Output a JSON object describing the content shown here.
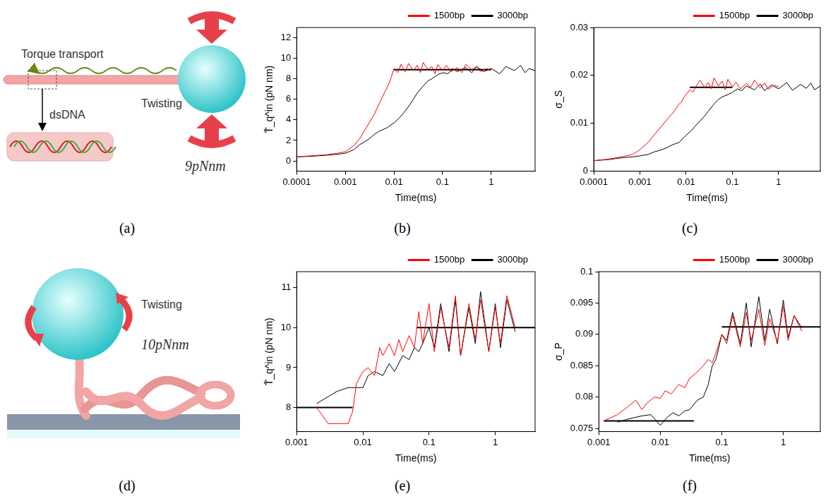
{
  "chart_data": [
    {
      "type": "line",
      "panel_label": "(b)",
      "x_label": "Time(ms)",
      "y_label": "T̄_q^in (pN nm)",
      "log": "x",
      "grid": false,
      "legend": "top-right",
      "xlim": [
        0.0001,
        8
      ],
      "xticks": [
        0.0001,
        0.001,
        0.01,
        0.1,
        1
      ],
      "ylim": [
        -1,
        13
      ],
      "yticks": [
        0,
        2,
        4,
        6,
        8,
        10,
        12
      ],
      "series": [
        {
          "name": "1500bp",
          "color": "#ff0000",
          "x": [
            0.0001,
            0.0002,
            0.0004,
            0.0007,
            0.001,
            0.0015,
            0.002,
            0.003,
            0.004,
            0.005,
            0.006,
            0.007,
            0.008,
            0.009,
            0.01,
            0.012,
            0.014,
            0.017,
            0.02,
            0.025,
            0.03,
            0.035,
            0.04,
            0.05,
            0.06,
            0.07,
            0.08,
            0.1,
            0.12,
            0.15,
            0.2,
            0.25,
            0.3,
            0.4,
            0.5,
            0.6,
            0.8,
            1
          ],
          "values": [
            0.4,
            0.5,
            0.6,
            0.75,
            0.9,
            1.5,
            2.2,
            3.6,
            4.6,
            5.6,
            6.4,
            7.0,
            7.6,
            8.3,
            9.0,
            8.6,
            9.4,
            8.7,
            9.5,
            8.8,
            9.3,
            8.6,
            9.6,
            8.9,
            9.2,
            8.5,
            9.4,
            8.8,
            9.3,
            8.7,
            9.1,
            8.6,
            9.4,
            8.9,
            9.2,
            8.7,
            9.0,
            8.8
          ]
        },
        {
          "name": "3000bp",
          "color": "#000000",
          "x": [
            0.0001,
            0.0002,
            0.0004,
            0.0007,
            0.001,
            0.0015,
            0.002,
            0.003,
            0.004,
            0.005,
            0.007,
            0.01,
            0.013,
            0.016,
            0.02,
            0.025,
            0.03,
            0.04,
            0.05,
            0.06,
            0.08,
            0.1,
            0.13,
            0.16,
            0.2,
            0.3,
            0.4,
            0.5,
            0.7,
            1,
            1.5,
            2,
            3,
            4,
            5,
            6,
            8
          ],
          "values": [
            0.4,
            0.45,
            0.55,
            0.65,
            0.75,
            1.1,
            1.6,
            2.1,
            2.6,
            2.9,
            3.2,
            3.7,
            4.2,
            4.7,
            5.3,
            6.0,
            6.6,
            7.3,
            7.8,
            8.0,
            8.4,
            8.6,
            8.5,
            9.0,
            8.7,
            9.1,
            8.6,
            9.2,
            8.7,
            9.0,
            8.5,
            9.2,
            8.8,
            9.3,
            8.6,
            9.0,
            8.8
          ]
        }
      ],
      "reference_lines": [
        {
          "y": 8.9,
          "x": [
            0.01,
            1
          ],
          "color": "#000000"
        }
      ]
    },
    {
      "type": "line",
      "panel_label": "(c)",
      "x_label": "Time(ms)",
      "y_label": "σ_S",
      "log": "x",
      "grid": false,
      "legend": "top-right",
      "xlim": [
        0.0001,
        8
      ],
      "xticks": [
        0.0001,
        0.001,
        0.01,
        0.1,
        1
      ],
      "ylim": [
        0,
        0.03
      ],
      "yticks": [
        0,
        0.01,
        0.02,
        0.03
      ],
      "series": [
        {
          "name": "1500bp",
          "color": "#ff0000",
          "x": [
            0.0001,
            0.0002,
            0.0004,
            0.0007,
            0.001,
            0.0015,
            0.002,
            0.003,
            0.004,
            0.005,
            0.006,
            0.007,
            0.008,
            0.009,
            0.01,
            0.012,
            0.014,
            0.017,
            0.02,
            0.025,
            0.03,
            0.035,
            0.04,
            0.05,
            0.06,
            0.07,
            0.08,
            0.1,
            0.12,
            0.15,
            0.2,
            0.25,
            0.3,
            0.4,
            0.5,
            0.6,
            0.8,
            1
          ],
          "values": [
            0.0022,
            0.0025,
            0.003,
            0.0035,
            0.0045,
            0.006,
            0.0075,
            0.0095,
            0.011,
            0.012,
            0.013,
            0.014,
            0.0145,
            0.0155,
            0.016,
            0.017,
            0.0165,
            0.018,
            0.019,
            0.0175,
            0.0185,
            0.0172,
            0.0195,
            0.0178,
            0.0188,
            0.017,
            0.0192,
            0.0176,
            0.0186,
            0.0172,
            0.0183,
            0.0175,
            0.019,
            0.0174,
            0.0184,
            0.0171,
            0.018,
            0.0176
          ]
        },
        {
          "name": "3000bp",
          "color": "#000000",
          "x": [
            0.0001,
            0.0002,
            0.0004,
            0.0007,
            0.001,
            0.0015,
            0.002,
            0.003,
            0.004,
            0.005,
            0.007,
            0.01,
            0.013,
            0.016,
            0.02,
            0.025,
            0.03,
            0.04,
            0.05,
            0.06,
            0.08,
            0.1,
            0.13,
            0.16,
            0.2,
            0.3,
            0.4,
            0.5,
            0.7,
            1,
            1.5,
            2,
            3,
            4,
            5,
            6,
            8
          ],
          "values": [
            0.0022,
            0.0024,
            0.0028,
            0.003,
            0.0032,
            0.0035,
            0.004,
            0.0045,
            0.005,
            0.0055,
            0.006,
            0.0075,
            0.0085,
            0.0095,
            0.0105,
            0.0115,
            0.0125,
            0.014,
            0.015,
            0.0155,
            0.016,
            0.0165,
            0.0172,
            0.0168,
            0.0178,
            0.017,
            0.0182,
            0.0168,
            0.018,
            0.0172,
            0.0185,
            0.0169,
            0.0181,
            0.0173,
            0.0184,
            0.017,
            0.0178
          ]
        }
      ],
      "reference_lines": [
        {
          "y": 0.0175,
          "x": [
            0.012,
            0.1
          ],
          "color": "#000000"
        }
      ]
    },
    {
      "type": "line",
      "panel_label": "(e)",
      "x_label": "Time(ms)",
      "y_label": "T̄_q^in (pN nm)",
      "log": "x",
      "grid": false,
      "legend": "top-right",
      "xlim": [
        0.001,
        4
      ],
      "xticks": [
        0.001,
        0.01,
        0.1,
        1
      ],
      "ylim": [
        7.4,
        11.4
      ],
      "yticks": [
        8,
        9,
        10,
        11
      ],
      "series": [
        {
          "name": "1500bp",
          "color": "#ff0000",
          "x": [
            0.002,
            0.003,
            0.004,
            0.005,
            0.006,
            0.007,
            0.008,
            0.01,
            0.012,
            0.015,
            0.018,
            0.02,
            0.025,
            0.03,
            0.035,
            0.04,
            0.05,
            0.06,
            0.07,
            0.08,
            0.1,
            0.12,
            0.15,
            0.2,
            0.25,
            0.3,
            0.4,
            0.5,
            0.6,
            0.8,
            1,
            1.2,
            1.5,
            2
          ],
          "values": [
            8.0,
            7.6,
            7.6,
            7.6,
            7.6,
            7.9,
            8.6,
            8.9,
            9.0,
            8.8,
            9.5,
            9.3,
            9.6,
            9.3,
            9.7,
            9.4,
            9.8,
            9.5,
            10.4,
            9.6,
            10.6,
            9.4,
            10.5,
            9.5,
            10.8,
            9.3,
            10.6,
            9.7,
            10.7,
            9.4,
            10.5,
            9.6,
            10.8,
            10.0
          ]
        },
        {
          "name": "3000bp",
          "color": "#000000",
          "x": [
            0.002,
            0.004,
            0.006,
            0.008,
            0.01,
            0.012,
            0.015,
            0.02,
            0.025,
            0.03,
            0.04,
            0.05,
            0.06,
            0.07,
            0.08,
            0.1,
            0.12,
            0.15,
            0.2,
            0.25,
            0.3,
            0.4,
            0.5,
            0.6,
            0.8,
            1,
            1.2,
            1.5,
            2
          ],
          "values": [
            8.1,
            8.4,
            8.5,
            8.5,
            8.5,
            8.8,
            8.9,
            8.8,
            9.1,
            8.9,
            9.3,
            9.2,
            9.5,
            9.4,
            9.6,
            10.0,
            9.5,
            10.6,
            9.4,
            10.7,
            9.3,
            10.5,
            9.6,
            10.9,
            9.4,
            10.6,
            9.5,
            10.7,
            9.9
          ]
        }
      ],
      "reference_lines": [
        {
          "y": 8,
          "x": [
            0.001,
            0.007
          ],
          "color": "#000000"
        },
        {
          "y": 10,
          "x": [
            0.065,
            4
          ],
          "color": "#000000"
        }
      ]
    },
    {
      "type": "line",
      "panel_label": "(f)",
      "x_label": "Time(ms)",
      "y_label": "σ_P",
      "log": "x",
      "grid": false,
      "legend": "top-right",
      "xlim": [
        0.001,
        4
      ],
      "xticks": [
        0.001,
        0.01,
        0.1,
        1
      ],
      "ylim": [
        0.0745,
        0.1
      ],
      "yticks": [
        0.075,
        0.08,
        0.085,
        0.09,
        0.095,
        0.1
      ],
      "series": [
        {
          "name": "1500bp",
          "color": "#ff0000",
          "x": [
            0.0012,
            0.002,
            0.003,
            0.004,
            0.005,
            0.006,
            0.008,
            0.01,
            0.012,
            0.015,
            0.02,
            0.025,
            0.03,
            0.04,
            0.05,
            0.06,
            0.07,
            0.08,
            0.1,
            0.12,
            0.15,
            0.2,
            0.25,
            0.3,
            0.4,
            0.5,
            0.6,
            0.8,
            1,
            1.2,
            1.5,
            2
          ],
          "values": [
            0.0762,
            0.0772,
            0.0785,
            0.0795,
            0.078,
            0.079,
            0.08,
            0.0798,
            0.081,
            0.0805,
            0.082,
            0.0815,
            0.083,
            0.084,
            0.085,
            0.086,
            0.0855,
            0.087,
            0.09,
            0.0885,
            0.093,
            0.088,
            0.0935,
            0.089,
            0.094,
            0.0882,
            0.0925,
            0.0888,
            0.0945,
            0.089,
            0.093,
            0.0905
          ]
        },
        {
          "name": "3000bp",
          "color": "#000000",
          "x": [
            0.002,
            0.003,
            0.005,
            0.007,
            0.01,
            0.013,
            0.016,
            0.02,
            0.025,
            0.03,
            0.04,
            0.05,
            0.06,
            0.07,
            0.08,
            0.09,
            0.1,
            0.12,
            0.15,
            0.2,
            0.25,
            0.3,
            0.4,
            0.5,
            0.6,
            0.8,
            1,
            1.2,
            1.5,
            2
          ],
          "values": [
            0.076,
            0.0765,
            0.077,
            0.0772,
            0.0755,
            0.0768,
            0.0775,
            0.077,
            0.0778,
            0.078,
            0.0795,
            0.08,
            0.082,
            0.085,
            0.086,
            0.088,
            0.09,
            0.089,
            0.0935,
            0.0885,
            0.095,
            0.088,
            0.096,
            0.089,
            0.094,
            0.0885,
            0.0955,
            0.0895,
            0.093,
            0.091
          ]
        }
      ],
      "reference_lines": [
        {
          "y": 0.0762,
          "x": [
            0.0012,
            0.035
          ],
          "color": "#000000"
        },
        {
          "y": 0.0912,
          "x": [
            0.1,
            4
          ],
          "color": "#000000"
        }
      ]
    }
  ],
  "diagrams": [
    {
      "panel_label": "(a)",
      "torque_label": "Torque transport",
      "inset_label": "dsDNA",
      "twist_label": "Twisting",
      "torque_value": "9pNnm"
    },
    {
      "panel_label": "(d)",
      "twist_label": "Twisting",
      "torque_value": "10pNnm"
    }
  ]
}
